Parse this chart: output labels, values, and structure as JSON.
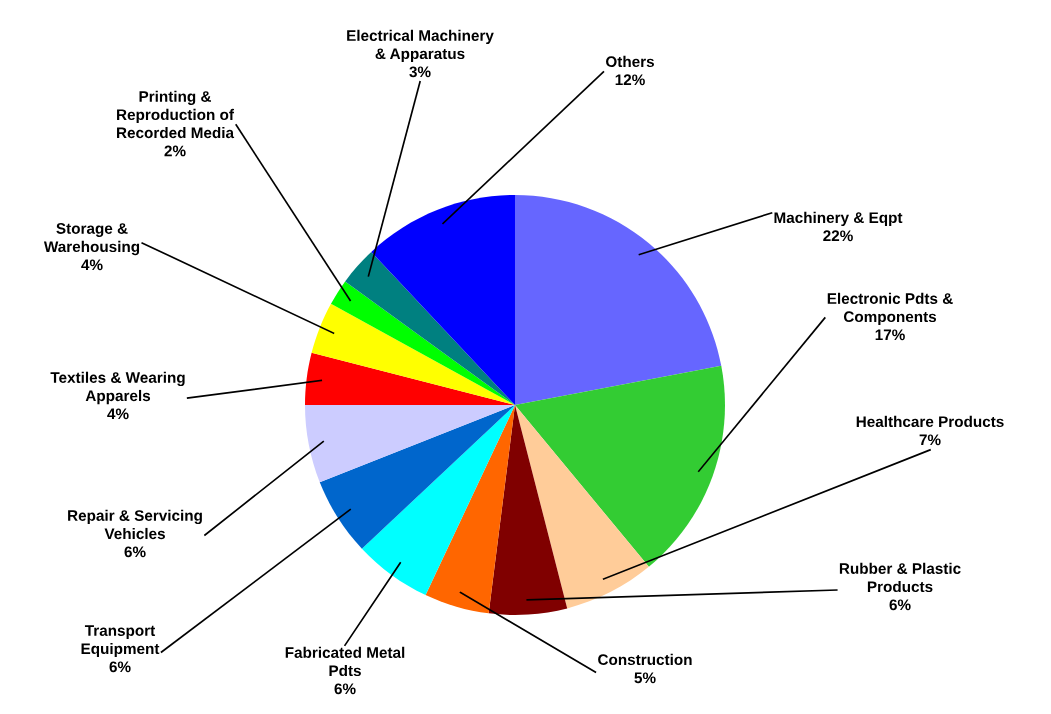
{
  "chart_data": {
    "type": "pie",
    "categories": [
      "Machinery & Eqpt",
      "Electronic Pdts &\nComponents",
      "Healthcare Products",
      "Rubber & Plastic\nProducts",
      "Construction",
      "Fabricated Metal\nPdts",
      "Transport\nEquipment",
      "Repair & Servicing\nVehicles",
      "Textiles & Wearing\nApparels",
      "Storage &\nWarehousing",
      "Printing &\nReproduction of\nRecorded Media",
      "Electrical Machinery\n& Apparatus",
      "Others"
    ],
    "values": [
      22,
      17,
      7,
      6,
      5,
      6,
      6,
      6,
      4,
      4,
      2,
      3,
      12
    ],
    "value_labels": [
      "22%",
      "17%",
      "7%",
      "6%",
      "5%",
      "6%",
      "6%",
      "6%",
      "4%",
      "4%",
      "2%",
      "3%",
      "12%"
    ],
    "colors": [
      "#6666ff",
      "#33cc33",
      "#ffcc99",
      "#800000",
      "#ff6600",
      "#00ffff",
      "#0066cc",
      "#ccccff",
      "#ff0000",
      "#ffff00",
      "#00ff00",
      "#008080",
      "#0000ff"
    ]
  }
}
